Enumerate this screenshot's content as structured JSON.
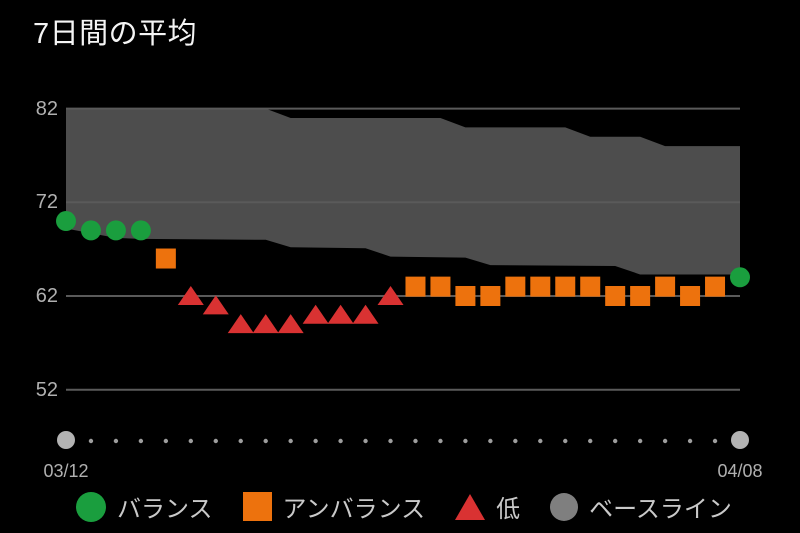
{
  "app": {
    "title": "7日間の平均"
  },
  "colors": {
    "background": "#000000",
    "band": "#4d4d4d",
    "grid": "#5a5a5a",
    "balanced": "#1a9e3e",
    "unbalanced": "#ed720d",
    "low": "#d93232",
    "baseline_marker": "#7f7f7f",
    "axis_text": "#b0b0b0",
    "legend_text": "#c9c9c9",
    "title_text": "#f5f5f5",
    "timeline_dot": "#9e9e9e",
    "timeline_end_dot": "#b3b3b3"
  },
  "x_axis": {
    "start_label": "03/12",
    "end_label": "04/08"
  },
  "legend": {
    "items": [
      {
        "id": "balanced",
        "label": "バランス"
      },
      {
        "id": "unbalanced",
        "label": "アンバランス"
      },
      {
        "id": "low",
        "label": "低"
      },
      {
        "id": "baseline",
        "label": "ベースライン"
      }
    ]
  },
  "chart_data": {
    "type": "scatter",
    "title": "7日間の平均",
    "xlabel": "",
    "ylabel": "",
    "ylim": [
      52,
      82
    ],
    "yticks": [
      82,
      72,
      62,
      52
    ],
    "grid": "horizontal-only",
    "legend_position": "bottom",
    "x_start_label": "03/12",
    "x_end_label": "04/08",
    "num_days": 28,
    "days": [
      {
        "status": "balanced",
        "value": 70
      },
      {
        "status": "balanced",
        "value": 69
      },
      {
        "status": "balanced",
        "value": 69
      },
      {
        "status": "balanced",
        "value": 69
      },
      {
        "status": "unbalanced",
        "value": 66
      },
      {
        "status": "low",
        "value": 62
      },
      {
        "status": "low",
        "value": 61
      },
      {
        "status": "low",
        "value": 59
      },
      {
        "status": "low",
        "value": 59
      },
      {
        "status": "low",
        "value": 59
      },
      {
        "status": "low",
        "value": 60
      },
      {
        "status": "low",
        "value": 60
      },
      {
        "status": "low",
        "value": 60
      },
      {
        "status": "low",
        "value": 62
      },
      {
        "status": "unbalanced",
        "value": 63
      },
      {
        "status": "unbalanced",
        "value": 63
      },
      {
        "status": "unbalanced",
        "value": 62
      },
      {
        "status": "unbalanced",
        "value": 62
      },
      {
        "status": "unbalanced",
        "value": 63
      },
      {
        "status": "unbalanced",
        "value": 63
      },
      {
        "status": "unbalanced",
        "value": 63
      },
      {
        "status": "unbalanced",
        "value": 63
      },
      {
        "status": "unbalanced",
        "value": 62
      },
      {
        "status": "unbalanced",
        "value": 62
      },
      {
        "status": "unbalanced",
        "value": 63
      },
      {
        "status": "unbalanced",
        "value": 62
      },
      {
        "status": "unbalanced",
        "value": 63
      },
      {
        "status": "balanced",
        "value": 64
      }
    ],
    "baseline_band": {
      "upper": [
        {
          "day": 0,
          "value": 82
        },
        {
          "day": 8,
          "value": 82
        },
        {
          "day": 9,
          "value": 81
        },
        {
          "day": 15,
          "value": 81
        },
        {
          "day": 16,
          "value": 80
        },
        {
          "day": 20,
          "value": 80
        },
        {
          "day": 21,
          "value": 79
        },
        {
          "day": 23,
          "value": 79
        },
        {
          "day": 24,
          "value": 78
        },
        {
          "day": 27,
          "value": 78
        }
      ],
      "lower": [
        {
          "day": 0,
          "value": 69.2
        },
        {
          "day": 1,
          "value": 68.7
        },
        {
          "day": 2,
          "value": 68.2
        },
        {
          "day": 3,
          "value": 68.1
        },
        {
          "day": 8,
          "value": 68.0
        },
        {
          "day": 9,
          "value": 67.2
        },
        {
          "day": 12,
          "value": 67.1
        },
        {
          "day": 13,
          "value": 66.2
        },
        {
          "day": 16,
          "value": 66.1
        },
        {
          "day": 17,
          "value": 65.3
        },
        {
          "day": 22,
          "value": 65.2
        },
        {
          "day": 23,
          "value": 64.3
        },
        {
          "day": 27,
          "value": 64.3
        }
      ]
    }
  }
}
